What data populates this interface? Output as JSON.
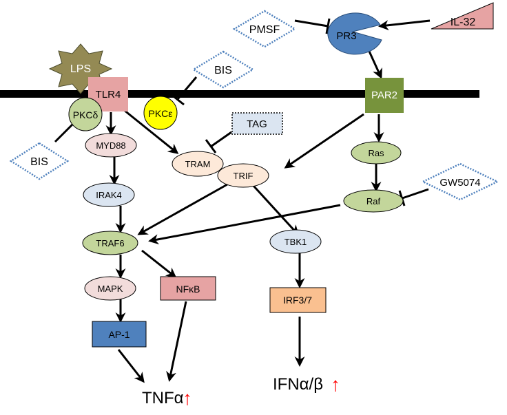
{
  "nodes": {
    "lps": "LPS",
    "tlr4": "TLR4",
    "pkcd": "PKCδ",
    "pkce": "PKCε",
    "bis_top": "BIS",
    "bis_left": "BIS",
    "myd88": "MYD88",
    "tram": "TRAM",
    "tag": "TAG",
    "trif": "TRIF",
    "irak4": "IRAK4",
    "traf6": "TRAF6",
    "tbk1": "TBK1",
    "mapk": "MAPK",
    "nfkb": "NFκB",
    "ap1": "AP-1",
    "irf37": "IRF3/7",
    "pmsf": "PMSF",
    "pr3": "PR3",
    "il32": "IL-32",
    "par2": "PAR2",
    "ras": "Ras",
    "raf": "Raf",
    "gw5074": "GW5074"
  },
  "outputs": {
    "tnfa": "TNFα",
    "ifn": "IFNα/β",
    "up_arrow": "↑"
  },
  "colors": {
    "membrane": "#000000",
    "pink_box": "#e6a3a3",
    "green": "#77933c",
    "green_light": "#c3d69b",
    "yellow": "#ffff00",
    "blue_light": "#dbe5f1",
    "blue_box": "#95b3d7",
    "blue_dark": "#4f81bd",
    "peach": "#fde9d9",
    "orange": "#fac090",
    "pink_light": "#f2dcdb",
    "olive": "#948a54",
    "red": "#ff0000",
    "dotted_border": "#4f81bd"
  },
  "icons": [
    "up-arrow-icon"
  ]
}
